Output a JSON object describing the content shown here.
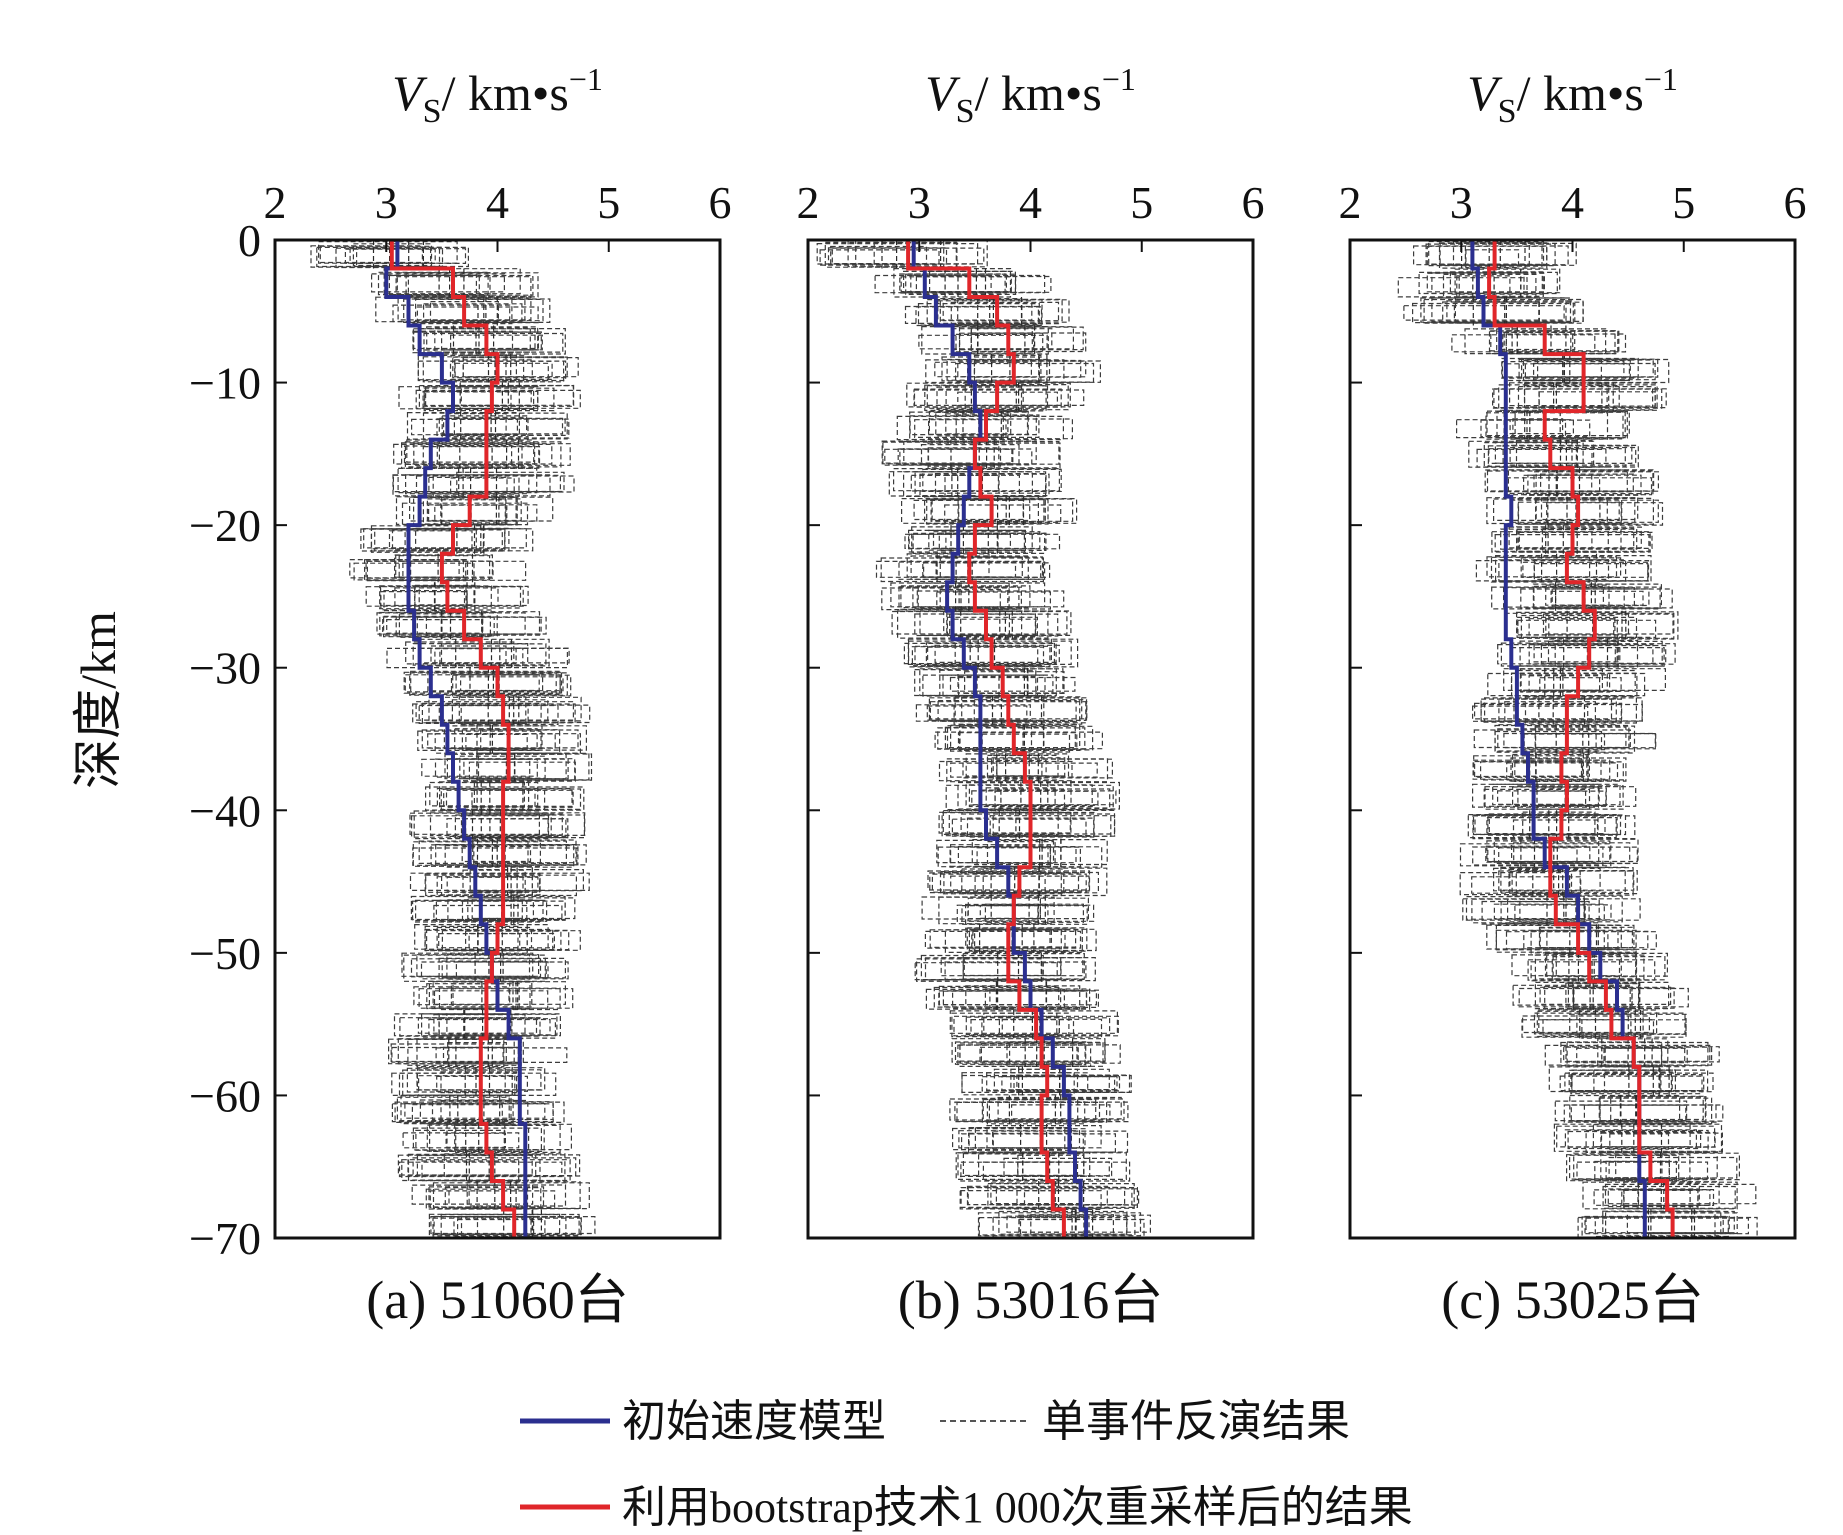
{
  "chart_data": [
    {
      "type": "line",
      "caption": "(a) 51060台",
      "xlabel_prefix": "V",
      "xlabel_sub": "S",
      "xlabel_unit": "/ km",
      "xlabel_sup": "−1",
      "ylabel": "深度/km",
      "xlim": [
        2,
        6
      ],
      "ylim": [
        -70,
        0
      ],
      "xticks": [
        "2",
        "3",
        "4",
        "5",
        "6"
      ],
      "yticks": [
        "0",
        "−10",
        "−20",
        "−30",
        "−40",
        "−50",
        "−60",
        "−70"
      ],
      "series": [
        {
          "name": "初始速度模型",
          "color": "#2b2f8f",
          "depth": [
            0,
            -2,
            -4,
            -6,
            -8,
            -10,
            -12,
            -14,
            -16,
            -18,
            -20,
            -22,
            -24,
            -26,
            -28,
            -30,
            -32,
            -34,
            -36,
            -38,
            -40,
            -42,
            -44,
            -46,
            -48,
            -50,
            -52,
            -54,
            -56,
            -58,
            -60,
            -62,
            -64,
            -66,
            -68,
            -70
          ],
          "vs": [
            3.1,
            3.0,
            3.2,
            3.3,
            3.5,
            3.6,
            3.55,
            3.4,
            3.35,
            3.3,
            3.2,
            3.2,
            3.2,
            3.25,
            3.3,
            3.4,
            3.5,
            3.55,
            3.6,
            3.65,
            3.7,
            3.75,
            3.8,
            3.85,
            3.9,
            3.95,
            4.0,
            4.1,
            4.2,
            4.2,
            4.2,
            4.25,
            4.25,
            4.25,
            4.25,
            4.25
          ]
        },
        {
          "name": "利用bootstrap技术1 000次重采样后的结果",
          "color": "#e0262a",
          "depth": [
            0,
            -2,
            -4,
            -6,
            -8,
            -10,
            -12,
            -14,
            -16,
            -18,
            -20,
            -22,
            -24,
            -26,
            -28,
            -30,
            -32,
            -34,
            -36,
            -38,
            -40,
            -42,
            -44,
            -46,
            -48,
            -50,
            -52,
            -54,
            -56,
            -58,
            -60,
            -62,
            -64,
            -66,
            -68,
            -70
          ],
          "vs": [
            3.05,
            3.6,
            3.7,
            3.9,
            4.0,
            3.95,
            3.9,
            3.9,
            3.9,
            3.75,
            3.6,
            3.5,
            3.55,
            3.7,
            3.85,
            4.0,
            4.05,
            4.1,
            4.1,
            4.05,
            4.05,
            4.05,
            4.05,
            4.05,
            4.0,
            3.95,
            3.9,
            3.9,
            3.85,
            3.85,
            3.85,
            3.9,
            3.95,
            4.05,
            4.15,
            4.2
          ]
        }
      ]
    },
    {
      "type": "line",
      "caption": "(b) 53016台",
      "xlabel_prefix": "V",
      "xlabel_sub": "S",
      "xlabel_unit": "/ km",
      "xlabel_sup": "−1",
      "xlim": [
        2,
        6
      ],
      "ylim": [
        -70,
        0
      ],
      "xticks": [
        "2",
        "3",
        "4",
        "5",
        "6"
      ],
      "series": [
        {
          "name": "初始速度模型",
          "color": "#2b2f8f",
          "depth": [
            0,
            -2,
            -4,
            -6,
            -8,
            -10,
            -12,
            -14,
            -16,
            -18,
            -20,
            -22,
            -24,
            -26,
            -28,
            -30,
            -32,
            -34,
            -36,
            -38,
            -40,
            -42,
            -44,
            -46,
            -48,
            -50,
            -52,
            -54,
            -56,
            -58,
            -60,
            -62,
            -64,
            -66,
            -68,
            -70
          ],
          "vs": [
            2.95,
            3.05,
            3.15,
            3.3,
            3.45,
            3.5,
            3.55,
            3.5,
            3.45,
            3.4,
            3.35,
            3.3,
            3.25,
            3.3,
            3.4,
            3.5,
            3.55,
            3.55,
            3.55,
            3.55,
            3.6,
            3.7,
            3.8,
            3.85,
            3.85,
            3.95,
            4.0,
            4.1,
            4.2,
            4.3,
            4.35,
            4.35,
            4.4,
            4.45,
            4.5,
            4.55
          ]
        },
        {
          "name": "利用bootstrap技术1 000次重采样后的结果",
          "color": "#e0262a",
          "depth": [
            0,
            -2,
            -4,
            -6,
            -8,
            -10,
            -12,
            -14,
            -16,
            -18,
            -20,
            -22,
            -24,
            -26,
            -28,
            -30,
            -32,
            -34,
            -36,
            -38,
            -40,
            -42,
            -44,
            -46,
            -48,
            -50,
            -52,
            -54,
            -56,
            -58,
            -60,
            -62,
            -64,
            -66,
            -68,
            -70
          ],
          "vs": [
            2.9,
            3.45,
            3.7,
            3.8,
            3.85,
            3.7,
            3.6,
            3.5,
            3.55,
            3.65,
            3.5,
            3.45,
            3.5,
            3.6,
            3.65,
            3.75,
            3.8,
            3.85,
            3.95,
            4.0,
            4.0,
            4.0,
            3.9,
            3.85,
            3.8,
            3.8,
            3.9,
            4.05,
            4.1,
            4.15,
            4.1,
            4.1,
            4.15,
            4.2,
            4.3,
            4.35
          ]
        }
      ]
    },
    {
      "type": "line",
      "caption": "(c) 53025台",
      "xlabel_prefix": "V",
      "xlabel_sub": "S",
      "xlabel_unit": "/ km",
      "xlabel_sup": "−1",
      "xlim": [
        2,
        6
      ],
      "ylim": [
        -70,
        0
      ],
      "xticks": [
        "2",
        "3",
        "4",
        "5",
        "6"
      ],
      "series": [
        {
          "name": "初始速度模型",
          "color": "#2b2f8f",
          "depth": [
            0,
            -2,
            -4,
            -6,
            -8,
            -10,
            -12,
            -14,
            -16,
            -18,
            -20,
            -22,
            -24,
            -26,
            -28,
            -30,
            -32,
            -34,
            -36,
            -38,
            -40,
            -42,
            -44,
            -46,
            -48,
            -50,
            -52,
            -54,
            -56,
            -58,
            -60,
            -62,
            -64,
            -66,
            -68,
            -70
          ],
          "vs": [
            3.1,
            3.15,
            3.2,
            3.35,
            3.4,
            3.4,
            3.4,
            3.4,
            3.4,
            3.45,
            3.4,
            3.4,
            3.4,
            3.4,
            3.45,
            3.5,
            3.5,
            3.55,
            3.6,
            3.65,
            3.65,
            3.75,
            3.95,
            4.05,
            4.15,
            4.25,
            4.4,
            4.45,
            4.55,
            4.6,
            4.6,
            4.6,
            4.6,
            4.65,
            4.65,
            4.65
          ]
        },
        {
          "name": "利用bootstrap技术1 000次重采样后的结果",
          "color": "#e0262a",
          "depth": [
            0,
            -2,
            -4,
            -6,
            -8,
            -10,
            -12,
            -14,
            -16,
            -18,
            -20,
            -22,
            -24,
            -26,
            -28,
            -30,
            -32,
            -34,
            -36,
            -38,
            -40,
            -42,
            -44,
            -46,
            -48,
            -50,
            -52,
            -54,
            -56,
            -58,
            -60,
            -62,
            -64,
            -66,
            -68,
            -70
          ],
          "vs": [
            3.3,
            3.25,
            3.3,
            3.75,
            4.1,
            4.1,
            3.75,
            3.8,
            4.0,
            4.05,
            4.0,
            3.95,
            4.1,
            4.2,
            4.15,
            4.05,
            3.95,
            3.95,
            3.9,
            3.95,
            3.9,
            3.8,
            3.8,
            3.85,
            4.05,
            4.15,
            4.3,
            4.35,
            4.55,
            4.6,
            4.6,
            4.6,
            4.7,
            4.85,
            4.9,
            4.9
          ]
        }
      ]
    }
  ],
  "legend": {
    "items": [
      {
        "label": "初始速度模型",
        "color": "#2b2f8f",
        "style": "solid"
      },
      {
        "label": "单事件反演结果",
        "color": "#555555",
        "style": "dashed"
      },
      {
        "label": "利用bootstrap技术1 000次重采样后的结果",
        "color": "#e0262a",
        "style": "solid"
      }
    ]
  }
}
